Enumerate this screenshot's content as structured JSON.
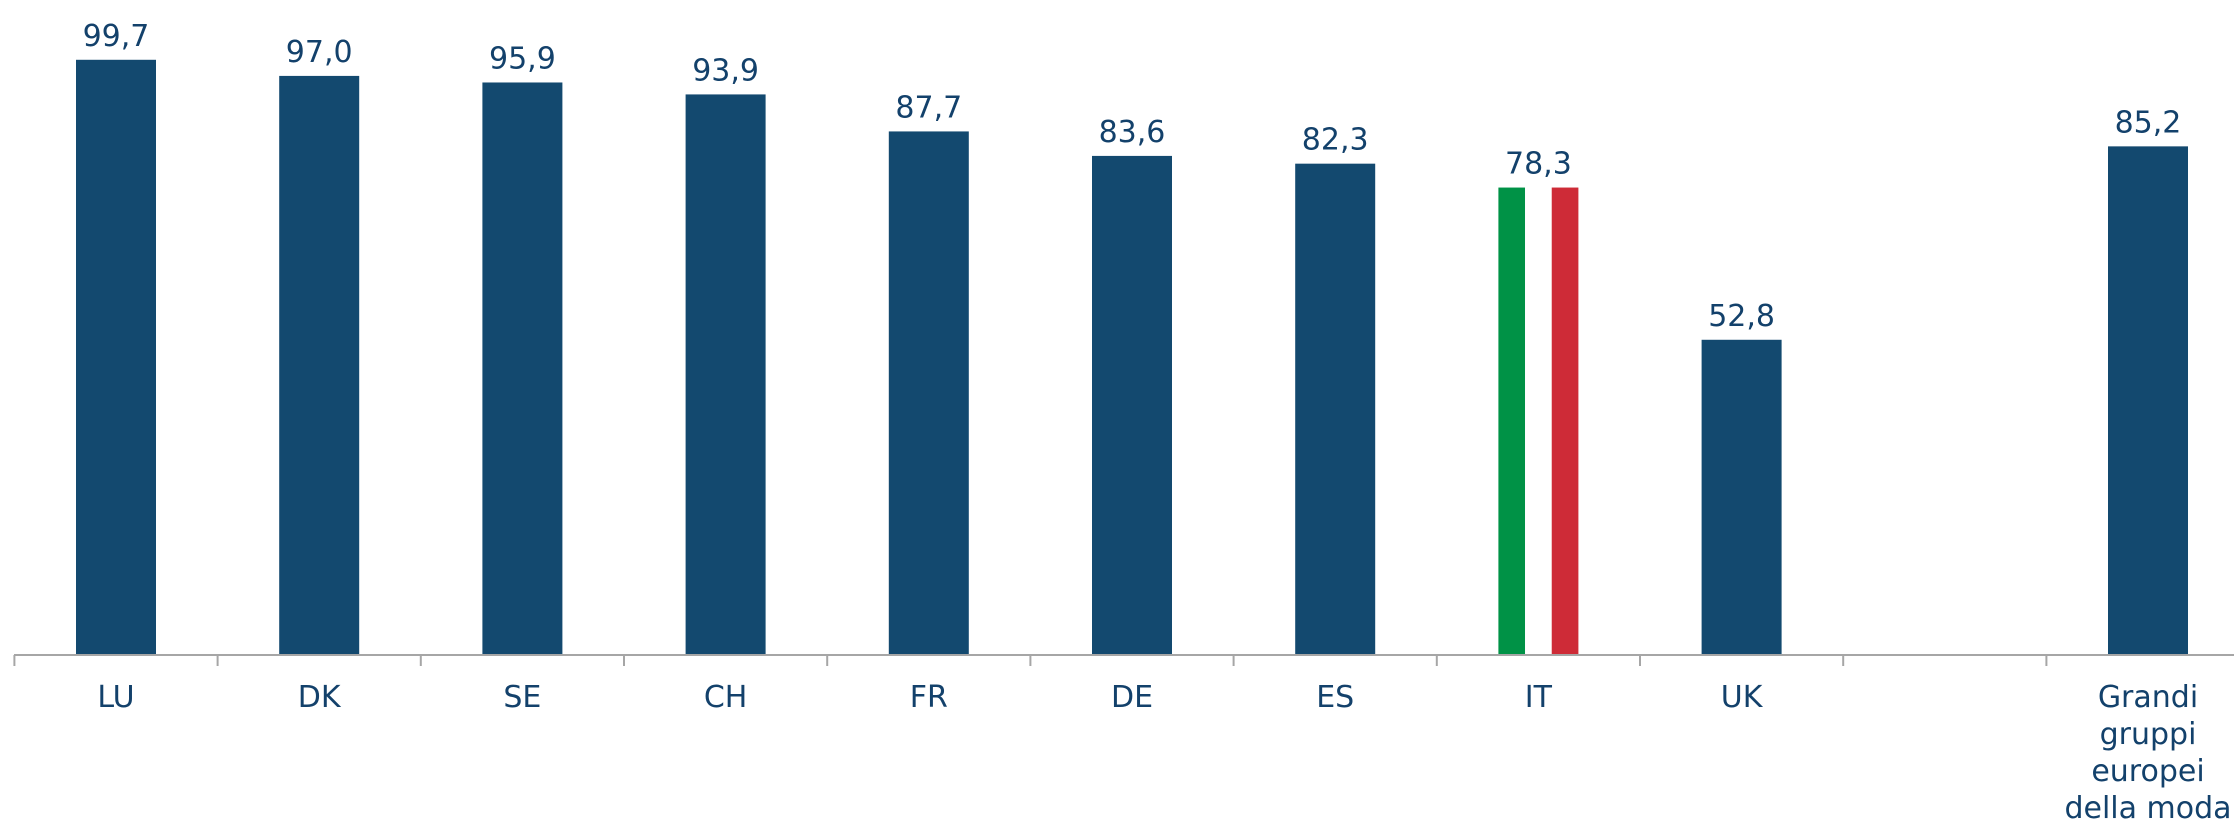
{
  "chart_data": {
    "type": "bar",
    "categories": [
      "LU",
      "DK",
      "SE",
      "CH",
      "FR",
      "DE",
      "ES",
      "IT",
      "UK",
      "",
      "Grandi gruppi europei della moda"
    ],
    "category_lines": [
      [
        "LU"
      ],
      [
        "DK"
      ],
      [
        "SE"
      ],
      [
        "CH"
      ],
      [
        "FR"
      ],
      [
        "DE"
      ],
      [
        "ES"
      ],
      [
        "IT"
      ],
      [
        "UK"
      ],
      [],
      [
        "Grandi",
        "gruppi",
        "europei",
        "della moda"
      ]
    ],
    "values": [
      99.7,
      97.0,
      95.9,
      93.9,
      87.7,
      83.6,
      82.3,
      78.3,
      52.8,
      null,
      85.2
    ],
    "value_labels": [
      "99,7",
      "97,0",
      "95,9",
      "93,9",
      "87,7",
      "83,6",
      "82,3",
      "78,3",
      "52,8",
      "",
      "85,2"
    ],
    "ylim": [
      0,
      100
    ],
    "grid": false,
    "legend": "none",
    "title": "",
    "xlabel": "",
    "ylabel": "",
    "highlight": {
      "category": "IT",
      "colors": [
        "#009246",
        "#ffffff",
        "#ce2b37"
      ]
    }
  },
  "colors": {
    "bar": "#13496f",
    "axis": "#a6a6a6",
    "text": "#13416b"
  }
}
